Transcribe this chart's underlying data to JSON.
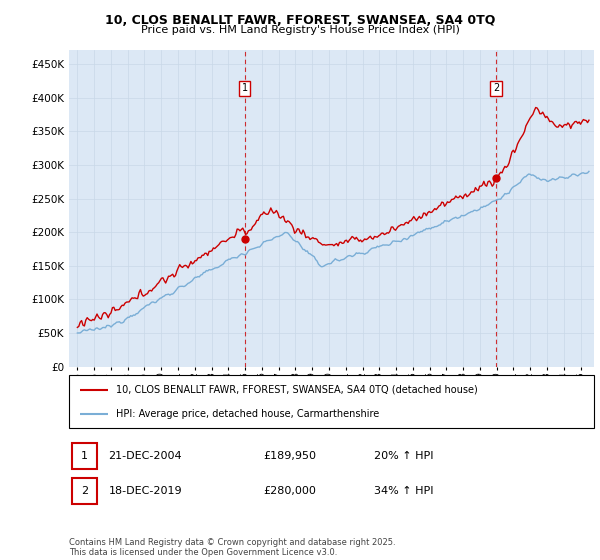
{
  "title1": "10, CLOS BENALLT FAWR, FFOREST, SWANSEA, SA4 0TQ",
  "title2": "Price paid vs. HM Land Registry's House Price Index (HPI)",
  "legend_line1": "10, CLOS BENALLT FAWR, FFOREST, SWANSEA, SA4 0TQ (detached house)",
  "legend_line2": "HPI: Average price, detached house, Carmarthenshire",
  "ann1_date": "21-DEC-2004",
  "ann1_price": "£189,950",
  "ann1_pct": "20% ↑ HPI",
  "ann2_date": "18-DEC-2019",
  "ann2_price": "£280,000",
  "ann2_pct": "34% ↑ HPI",
  "footer": "Contains HM Land Registry data © Crown copyright and database right 2025.\nThis data is licensed under the Open Government Licence v3.0.",
  "red_color": "#cc0000",
  "blue_color": "#7aaed6",
  "vline_color": "#cc0000",
  "grid_color": "#c8d8e8",
  "bg_color": "#dce8f5",
  "plot_bg": "#ffffff",
  "ylim": [
    0,
    470000
  ],
  "yticks": [
    0,
    50000,
    100000,
    150000,
    200000,
    250000,
    300000,
    350000,
    400000,
    450000
  ],
  "sale1_x": 2004.97,
  "sale1_y": 189950,
  "sale2_x": 2019.96,
  "sale2_y": 280000,
  "xmin": 1994.5,
  "xmax": 2025.8
}
